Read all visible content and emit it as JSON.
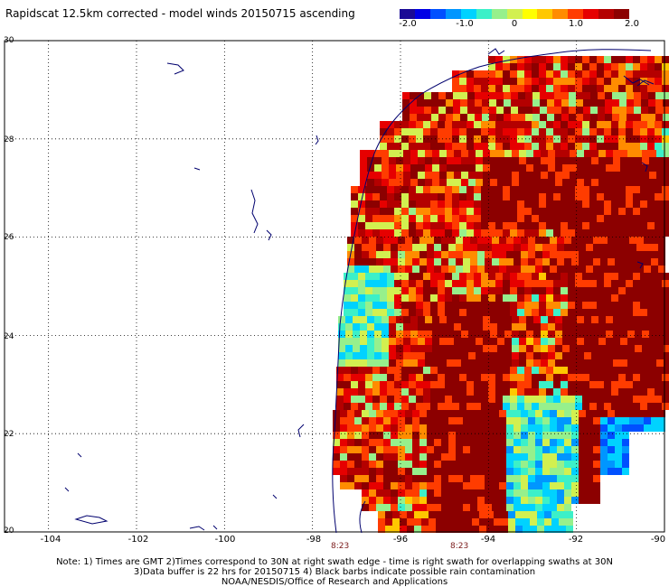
{
  "title": "Rapidscat 12.5km corrected - model winds 20150715 ascending",
  "colorbar": {
    "ticks": [
      "-2.0",
      "-1.0",
      "0",
      "1.0",
      "2.0"
    ],
    "colors": [
      "#1a0a96",
      "#0000e6",
      "#0050ff",
      "#0096ff",
      "#00d2ff",
      "#3cf0c8",
      "#96f08c",
      "#d2f050",
      "#ffff00",
      "#ffc800",
      "#ff8c00",
      "#ff3c00",
      "#e60000",
      "#b40000",
      "#8c0000"
    ]
  },
  "map": {
    "lat_labels": [
      "30",
      "28",
      "26",
      "24",
      "22",
      "20"
    ],
    "lon_labels": [
      "-104",
      "-102",
      "-100",
      "-98",
      "-96",
      "-94",
      "-92",
      "-90"
    ],
    "lat_range": [
      20,
      30
    ],
    "lon_range": [
      -105,
      -90
    ],
    "coast_color": "#00006e",
    "grid": "dotted"
  },
  "swath_times": [
    "8:23",
    "8:23"
  ],
  "notes": [
    "Note: 1) Times are GMT 2)Times correspond to 30N at right swath edge - time is right swath for overlapping swaths at 30N",
    "3)Data buffer is 22 hrs for 20150715 4) Black barbs indicate possible rain contamination",
    "NOAA/NESDIS/Office of Research and Applications"
  ]
}
